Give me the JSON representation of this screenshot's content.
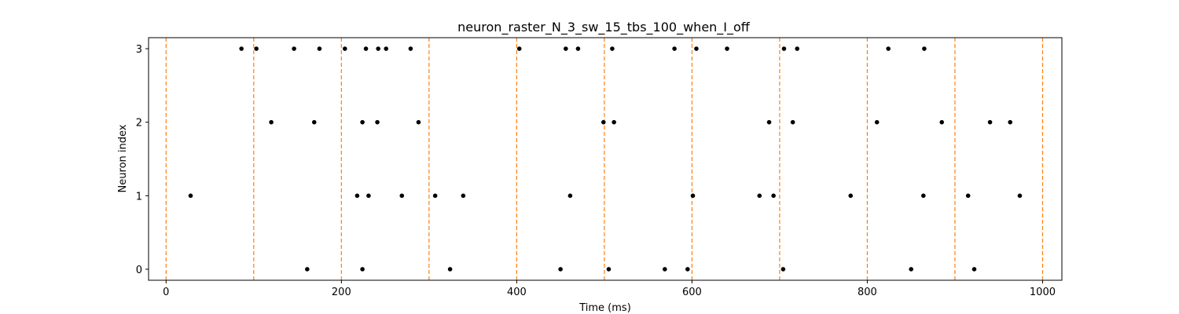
{
  "chart_data": {
    "type": "scatter",
    "title": "neuron_raster_N_3_sw_15_tbs_100_when_I_off",
    "xlabel": "Time (ms)",
    "ylabel": "Neuron index",
    "xlim": [
      -20,
      1022
    ],
    "ylim": [
      -0.15,
      3.15
    ],
    "x_ticks": [
      0,
      200,
      400,
      600,
      800,
      1000
    ],
    "y_ticks": [
      0,
      1,
      2,
      3
    ],
    "grid": false,
    "marker_color": "#000000",
    "vline_color": "#ff7f0e",
    "vline_style": "dashed",
    "vlines_x": [
      0,
      100,
      200,
      300,
      400,
      500,
      600,
      700,
      800,
      900,
      1000
    ],
    "spikes": [
      {
        "neuron": 3,
        "times": [
          86,
          103,
          146,
          175,
          204,
          228,
          242,
          251,
          279,
          403,
          456,
          470,
          509,
          580,
          605,
          640,
          705,
          720,
          824,
          865
        ]
      },
      {
        "neuron": 2,
        "times": [
          120,
          169,
          224,
          241,
          288,
          499,
          511,
          688,
          715,
          811,
          885,
          940,
          963
        ]
      },
      {
        "neuron": 1,
        "times": [
          28,
          218,
          231,
          269,
          307,
          339,
          461,
          601,
          677,
          693,
          781,
          864,
          915,
          974
        ]
      },
      {
        "neuron": 0,
        "times": [
          161,
          224,
          324,
          450,
          505,
          569,
          595,
          704,
          850,
          922
        ]
      }
    ]
  }
}
